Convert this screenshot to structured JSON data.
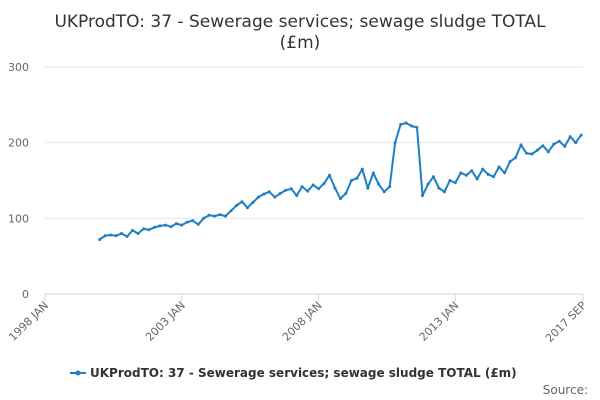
{
  "chart_data": {
    "type": "line",
    "title_lines": [
      "UKProdTO: 37 - Sewerage services; sewage sludge TOTAL",
      "(£m)"
    ],
    "xlabel": "",
    "ylabel": "",
    "x_tick_labels": [
      "1998 JAN",
      "2003 JAN",
      "2008 JAN",
      "2013 JAN",
      "2017 SEP"
    ],
    "x_tick_positions": [
      1998.0,
      2003.0,
      2008.0,
      2013.0,
      2017.667
    ],
    "xlim": [
      1998.0,
      2017.667
    ],
    "y_ticks": [
      0,
      100,
      200,
      300
    ],
    "ylim": [
      0,
      300
    ],
    "grid": true,
    "legend": "bottom-center",
    "credit": "Source:",
    "series": [
      {
        "name": "UKProdTO: 37 - Sewerage services; sewage sludge TOTAL (£m)",
        "color": "#1f7fc0",
        "x": [
          2000.0,
          2000.2,
          2000.4,
          2000.6,
          2000.8,
          2001.0,
          2001.2,
          2001.4,
          2001.6,
          2001.8,
          2002.0,
          2002.2,
          2002.4,
          2002.6,
          2002.8,
          2003.0,
          2003.2,
          2003.4,
          2003.6,
          2003.8,
          2004.0,
          2004.2,
          2004.4,
          2004.6,
          2004.8,
          2005.0,
          2005.2,
          2005.4,
          2005.6,
          2005.8,
          2006.0,
          2006.2,
          2006.4,
          2006.6,
          2006.8,
          2007.0,
          2007.2,
          2007.4,
          2007.6,
          2007.8,
          2008.0,
          2008.2,
          2008.4,
          2008.6,
          2008.8,
          2009.0,
          2009.2,
          2009.4,
          2009.6,
          2009.8,
          2010.0,
          2010.2,
          2010.4,
          2010.6,
          2010.8,
          2011.0,
          2011.2,
          2011.4,
          2011.6,
          2011.8,
          2012.0,
          2012.2,
          2012.4,
          2012.6,
          2012.8,
          2013.0,
          2013.2,
          2013.4,
          2013.6,
          2013.8,
          2014.0,
          2014.2,
          2014.4,
          2014.6,
          2014.8,
          2015.0,
          2015.2,
          2015.4,
          2015.6,
          2015.8,
          2016.0,
          2016.2,
          2016.4,
          2016.6,
          2016.8,
          2017.0,
          2017.2,
          2017.4,
          2017.6
        ],
        "values": [
          72,
          77,
          78,
          77,
          80,
          76,
          84,
          80,
          86,
          85,
          88,
          90,
          91,
          89,
          93,
          91,
          95,
          97,
          92,
          100,
          104,
          103,
          105,
          103,
          110,
          117,
          122,
          114,
          121,
          128,
          132,
          135,
          128,
          133,
          137,
          139,
          130,
          142,
          136,
          144,
          139,
          146,
          157,
          140,
          126,
          133,
          150,
          153,
          165,
          140,
          160,
          145,
          135,
          142,
          200,
          224,
          226,
          222,
          220,
          130,
          145,
          155,
          140,
          135,
          150,
          147,
          160,
          157,
          163,
          152,
          165,
          158,
          155,
          168,
          160,
          175,
          180,
          197,
          186,
          185,
          190,
          196,
          188,
          198,
          202,
          195,
          208,
          200,
          210
        ]
      }
    ]
  }
}
